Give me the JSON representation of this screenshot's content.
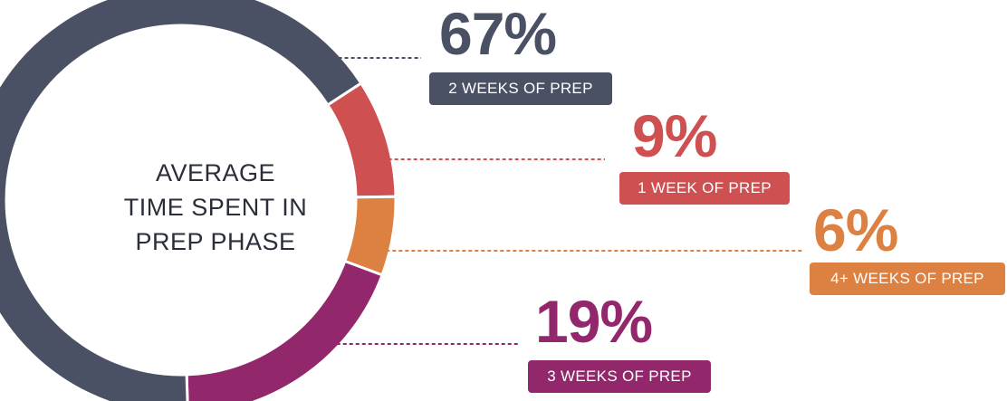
{
  "chart_data": {
    "type": "pie",
    "title": "AVERAGE TIME SPENT IN PREP PHASE",
    "title_lines": [
      "AVERAGE",
      "TIME SPENT IN",
      "PREP PHASE"
    ],
    "categories": [
      "2 WEEKS OF PREP",
      "1 WEEK OF PREP",
      "4+ WEEKS OF PREP",
      "3 WEEKS OF PREP"
    ],
    "values": [
      67,
      9,
      6,
      19
    ],
    "value_labels": [
      "67%",
      "9%",
      "6%",
      "19%"
    ],
    "colors": [
      "#4b5164",
      "#cf5050",
      "#dd8142",
      "#93276b"
    ],
    "legend": "right"
  }
}
